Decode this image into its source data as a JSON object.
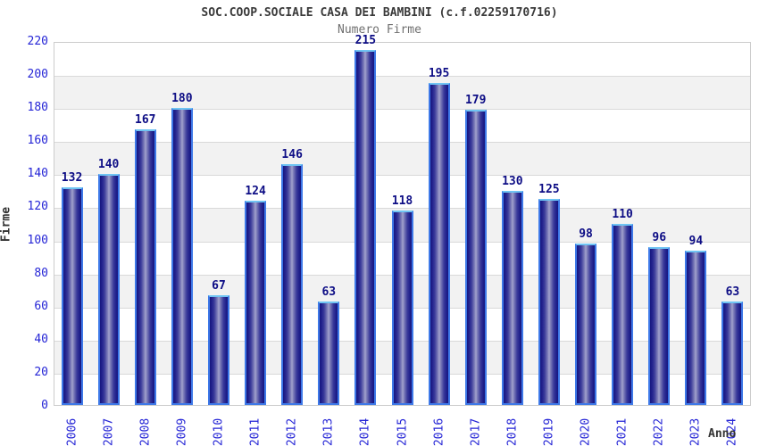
{
  "chart": {
    "title": "SOC.COOP.SOCIALE CASA DEI BAMBINI (c.f.02259170716)",
    "subtitle": "Numero Firme",
    "ylabel": "Firme",
    "xlabel": "Anno"
  },
  "chart_data": {
    "type": "bar",
    "title": "SOC.COOP.SOCIALE CASA DEI BAMBINI (c.f.02259170716)",
    "subtitle": "Numero Firme",
    "xlabel": "Anno",
    "ylabel": "Firme",
    "categories": [
      "2006",
      "2007",
      "2008",
      "2009",
      "2010",
      "2011",
      "2012",
      "2013",
      "2014",
      "2015",
      "2016",
      "2017",
      "2018",
      "2019",
      "2020",
      "2021",
      "2022",
      "2023",
      "2024"
    ],
    "values": [
      132,
      140,
      167,
      180,
      67,
      124,
      146,
      63,
      215,
      118,
      195,
      179,
      130,
      125,
      98,
      110,
      96,
      94,
      63
    ],
    "ylim": [
      0,
      220
    ],
    "ytick_step": 20,
    "grid": true,
    "band_fill": "alternate-horizontal",
    "legend": "none",
    "colors": {
      "bar_edge": "#3e79e8",
      "bar_dark": "#17177e",
      "bar_light": "#a4a4ce",
      "tick_label": "#2525d6",
      "value_label": "#0d0d85",
      "band_gray": "#f2f2f2",
      "gridline": "#d9d9d9",
      "title": "#3a3a3a",
      "subtitle": "#707070"
    }
  }
}
